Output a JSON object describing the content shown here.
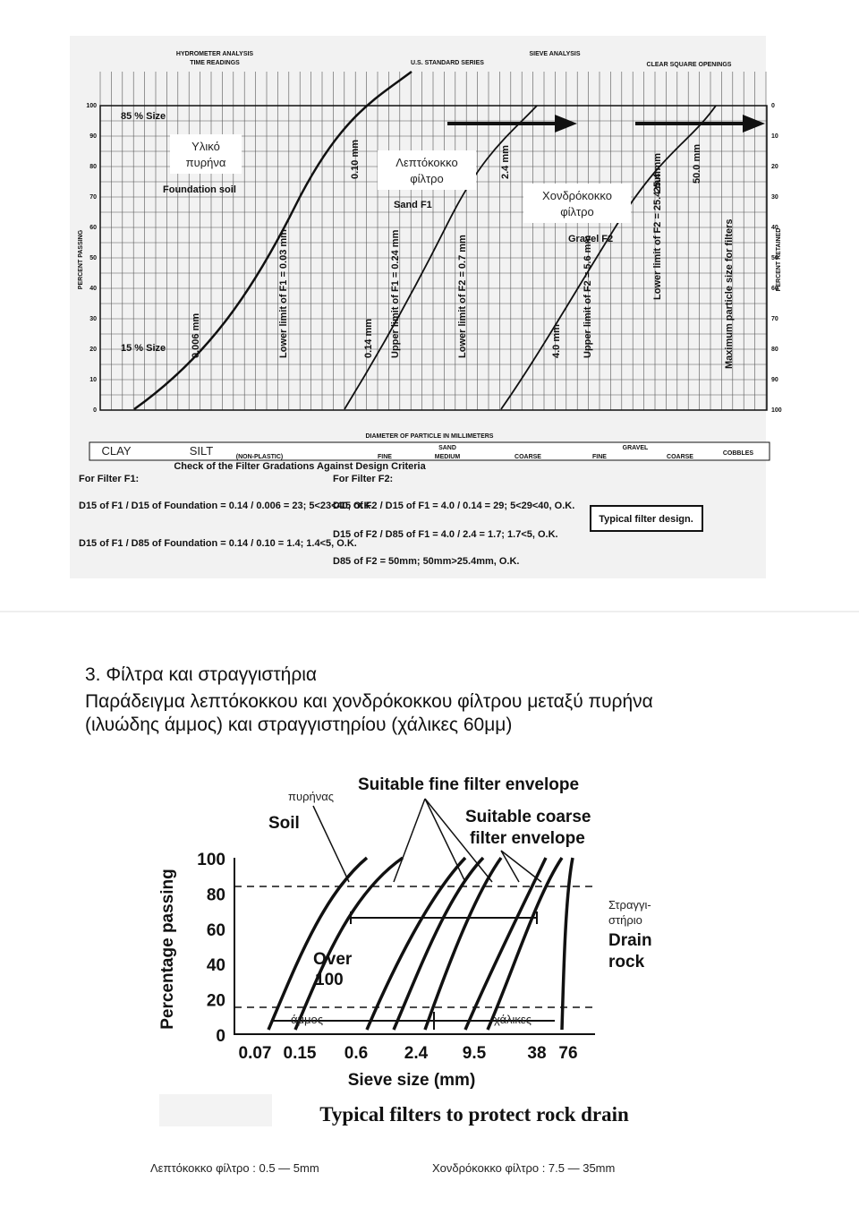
{
  "top_figure": {
    "header": {
      "hydrometer": "HYDROMETER ANALYSIS",
      "time_readings": "TIME READINGS",
      "sieve": "SIEVE ANALYSIS",
      "us_series": "U.S. STANDARD SERIES",
      "clear": "CLEAR SQUARE OPENINGS"
    },
    "y_left_label": "PERCENT PASSING",
    "y_right_label": "PERCENT RETAINED",
    "y_left_ticks": [
      "0",
      "10",
      "20",
      "30",
      "40",
      "50",
      "60",
      "70",
      "80",
      "90",
      "100"
    ],
    "y_right_ticks": [
      "100",
      "90",
      "80",
      "70",
      "60",
      "50",
      "40",
      "30",
      "20",
      "10",
      "0"
    ],
    "x_label": "DIAMETER OF PARTICLE IN MILLIMETERS",
    "overlays": {
      "core": [
        "Υλικό",
        "πυρήνα"
      ],
      "fine": [
        "Λεπτόκοκκο",
        "φίλτρο"
      ],
      "coarse": [
        "Χονδρόκοκκο",
        "φίλτρο"
      ]
    },
    "annotations": {
      "size85": "85 % Size",
      "size15": "15 % Size",
      "foundation": "Foundation soil",
      "sand": "Sand F1",
      "gravel": "Gravel F2",
      "d010": "0.10 mm",
      "d24": "2.4 mm",
      "d254": "25.4 mm",
      "d50": "50.0 mm",
      "d0006": "0.006 mm",
      "lower_f1": "Lower limit of F1 = 0.03 mm",
      "d014": "0.14 mm",
      "upper_f1": "Upper limit of F1 = 0.24 mm",
      "lower_f2": "Lower limit of F2 = 0.7 mm",
      "d40": "4.0 mm",
      "upper_f2": "Upper limit of F2 = 5.6 mm",
      "lower_f2b": "Lower limit of F2 = 25.4 mm",
      "max": "Maximum particle size for filters"
    },
    "classes": [
      "CLAY",
      "SILT",
      "(NON-PLASTIC)",
      "SAND",
      "FINE",
      "MEDIUM",
      "COARSE",
      "GRAVEL",
      "FINE",
      "COARSE",
      "COBBLES"
    ],
    "check": {
      "title": "Check of the Filter Gradations Against Design Criteria",
      "f1": "For Filter F1:",
      "f2": "For Filter F2:",
      "eq1": "D15 of F1 / D15 of Foundation = 0.14 / 0.006 = 23; 5<23<40, O.K.",
      "eq2": "D15 of F1 / D85 of Foundation = 0.14 / 0.10 = 1.4; 1.4<5, O.K.",
      "eq3": "D15 of F2 / D15 of F1 = 4.0 / 0.14 = 29; 5<29<40, O.K.",
      "eq4": "D15 of F2 / D85 of F1 = 4.0 / 2.4 = 1.7; 1.7<5, O.K.",
      "eq5": "D85 of F2 = 50mm; 50mm>25.4mm, O.K.",
      "caption": "Typical filter design."
    }
  },
  "section": {
    "heading": "3. Φίλτρα και στραγγιστήρια",
    "line1": "Παράδειγμα λεπτόκοκκου και χονδρόκοκκου φίλτρου μεταξύ πυρήνα",
    "line2": "(ιλυώδης άμμος) και στραγγιστηρίου (χάλικες 60μμ)"
  },
  "bottom_figure": {
    "core_gr": "πυρήνας",
    "soil": "Soil",
    "fine": "Suitable fine filter envelope",
    "coarse1": "Suitable coarse",
    "coarse2": "filter envelope",
    "drain_gr": [
      "Στραγγι-",
      "στήριο"
    ],
    "drain": [
      "Drain",
      "rock"
    ],
    "over": [
      "Over",
      "100"
    ],
    "sand_gr": "άμμος",
    "gravel_gr": "χάλικες",
    "y_label": "Percentage passing",
    "yticks": [
      "100",
      "80",
      "60",
      "40",
      "20",
      "0"
    ],
    "xticks": [
      "0.07",
      "0.15",
      "0.6",
      "2.4",
      "9.5",
      "38",
      "76"
    ],
    "x_label": "Sieve size (mm)",
    "caption": "Typical filters to protect rock drain"
  },
  "footer": {
    "fine": "Λεπτόκοκκο φίλτρο : 0.5 — 5mm",
    "coarse": "Χονδρόκοκκο φίλτρο : 7.5 — 35mm"
  }
}
